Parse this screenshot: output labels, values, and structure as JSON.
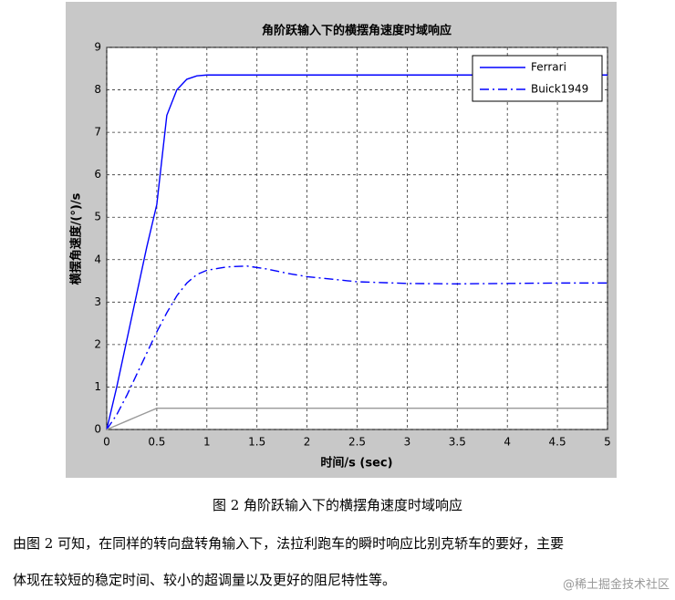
{
  "chart_data": {
    "type": "line",
    "title": "角阶跃输入下的横摆角速度时域响应",
    "x_label": "时间/s (sec)",
    "y_label": "横摆角速度/(°)/s",
    "x": [
      0,
      0.1,
      0.2,
      0.3,
      0.4,
      0.5,
      0.6,
      0.7,
      0.8,
      0.9,
      1,
      1.2,
      1.4,
      1.6,
      1.8,
      2,
      2.5,
      3,
      3.5,
      4,
      4.5,
      5
    ],
    "series": [
      {
        "name": "Ferrari",
        "color": "#0000ff",
        "style": "solid",
        "values": [
          0,
          1.0,
          2.1,
          3.2,
          4.3,
          5.3,
          7.4,
          8.0,
          8.25,
          8.33,
          8.35,
          8.35,
          8.35,
          8.35,
          8.35,
          8.35,
          8.35,
          8.35,
          8.35,
          8.35,
          8.35,
          8.35
        ]
      },
      {
        "name": "Buick1949",
        "color": "#0000ff",
        "style": "dashdot",
        "values": [
          0,
          0.35,
          0.8,
          1.3,
          1.8,
          2.3,
          2.75,
          3.15,
          3.45,
          3.65,
          3.75,
          3.83,
          3.85,
          3.78,
          3.68,
          3.6,
          3.48,
          3.44,
          3.43,
          3.44,
          3.45,
          3.45
        ]
      },
      {
        "color": "#999999",
        "style": "solid",
        "values": [
          0,
          0.1,
          0.2,
          0.3,
          0.4,
          0.5,
          0.5,
          0.5,
          0.5,
          0.5,
          0.5,
          0.5,
          0.5,
          0.5,
          0.5,
          0.5,
          0.5,
          0.5,
          0.5,
          0.5,
          0.5,
          0.5
        ]
      }
    ],
    "xlim": [
      0,
      5
    ],
    "xticks": [
      0,
      0.5,
      1,
      1.5,
      2,
      2.5,
      3,
      3.5,
      4,
      4.5,
      5
    ],
    "ylim": [
      0,
      9
    ],
    "yticks": [
      0,
      1,
      2,
      3,
      4,
      5,
      6,
      7,
      8,
      9
    ],
    "grid": true,
    "legend": "upper right"
  },
  "caption": "图 2  角阶跃输入下的横摆角速度时域响应",
  "paragraph": [
    "由图 2 可知，在同样的转向盘转角输入下，法拉利跑车的瞬时响应比别克轿车的要好，主要",
    "体现在较短的稳定时间、较小的超调量以及更好的阻尼特性等。"
  ],
  "watermark": "@稀土掘金技术社区"
}
